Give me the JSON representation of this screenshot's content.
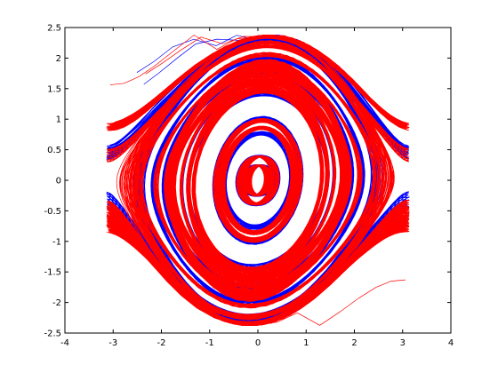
{
  "chart_data": {
    "type": "line",
    "title": "",
    "xlabel": "",
    "ylabel": "",
    "xlim": [
      -4,
      4
    ],
    "ylim": [
      -2.5,
      2.5
    ],
    "x_ticks": [
      -4,
      -3,
      -2,
      -1,
      0,
      1,
      2,
      3,
      4
    ],
    "y_ticks": [
      -2.5,
      -2,
      -1.5,
      -1,
      -0.5,
      0,
      0.5,
      1,
      1.5,
      2,
      2.5
    ],
    "x_tick_labels": [
      "-4",
      "-3",
      "-2",
      "-1",
      "0",
      "1",
      "2",
      "3",
      "4"
    ],
    "y_tick_labels": [
      "-2.5",
      "-2",
      "-1.5",
      "-1",
      "-0.5",
      "0",
      "0.5",
      "1",
      "1.5",
      "2",
      "2.5"
    ],
    "grid": false,
    "legend": "none",
    "series": [
      {
        "color": "#0000ff",
        "description_type": "phase-space trajectory (blue)"
      },
      {
        "color": "#ff0000",
        "description_type": "phase-space trajectory (red)"
      }
    ]
  }
}
